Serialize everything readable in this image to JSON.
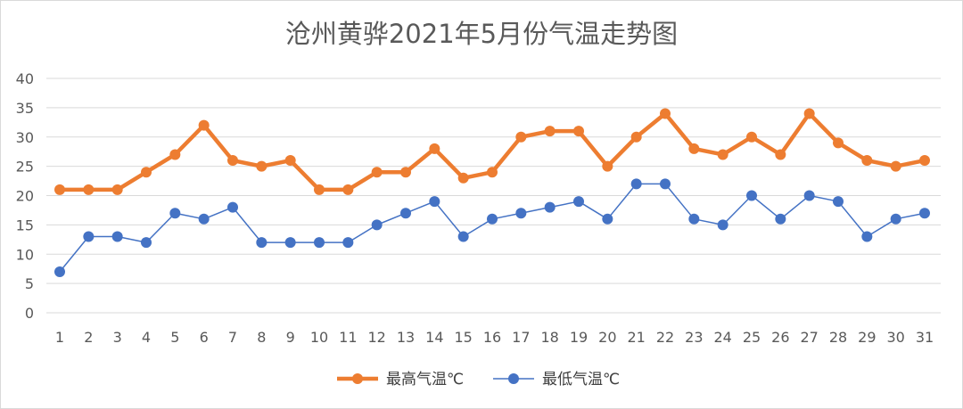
{
  "chart_data": {
    "type": "line",
    "title": "沧州黄骅2021年5月份气温走势图",
    "xlabel": "",
    "ylabel": "",
    "ylim": [
      0,
      40
    ],
    "yticks": [
      "0",
      "5",
      "10",
      "15",
      "20",
      "25",
      "30",
      "35",
      "40"
    ],
    "categories": [
      "1",
      "2",
      "3",
      "4",
      "5",
      "6",
      "7",
      "8",
      "9",
      "10",
      "11",
      "12",
      "13",
      "14",
      "15",
      "16",
      "17",
      "18",
      "19",
      "20",
      "21",
      "22",
      "23",
      "24",
      "25",
      "26",
      "27",
      "28",
      "29",
      "30",
      "31"
    ],
    "grid": true,
    "legend_position": "bottom",
    "series": [
      {
        "name": "最高气温℃",
        "color": "#ED7D31",
        "values": [
          21,
          21,
          21,
          24,
          27,
          32,
          26,
          25,
          26,
          21,
          21,
          24,
          24,
          28,
          23,
          24,
          30,
          31,
          31,
          25,
          30,
          34,
          28,
          27,
          30,
          27,
          34,
          29,
          26,
          25,
          26
        ]
      },
      {
        "name": "最低气温℃",
        "color": "#4472C4",
        "values": [
          7,
          13,
          13,
          12,
          17,
          16,
          18,
          12,
          12,
          12,
          12,
          15,
          17,
          19,
          13,
          16,
          17,
          18,
          19,
          16,
          22,
          22,
          16,
          15,
          20,
          16,
          20,
          19,
          13,
          16,
          17
        ]
      }
    ]
  }
}
